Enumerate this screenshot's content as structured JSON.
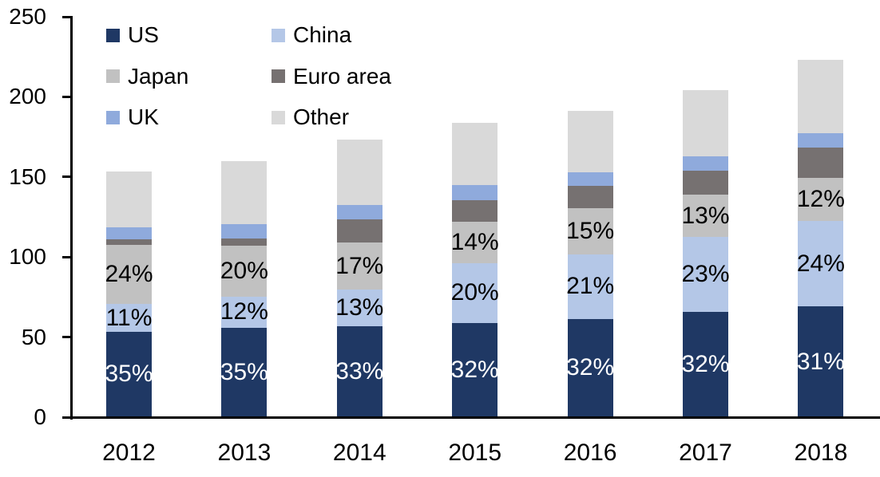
{
  "chart_data": {
    "type": "bar",
    "stacked": true,
    "title": "",
    "xlabel": "",
    "ylabel": "",
    "grid": false,
    "background_color": "#ffffff",
    "axis_color": "#000000",
    "categories": [
      "2012",
      "2013",
      "2014",
      "2015",
      "2016",
      "2017",
      "2018"
    ],
    "totals": [
      153.5,
      160,
      173.5,
      184,
      191.5,
      204,
      223
    ],
    "series": [
      {
        "name": "US",
        "color": "#1f3864",
        "label_text_color": "#ffffff",
        "values": [
          53.5,
          56,
          57,
          59,
          61.5,
          65.5,
          69
        ],
        "labels": [
          "35%",
          "35%",
          "33%",
          "32%",
          "32%",
          "32%",
          "31%"
        ]
      },
      {
        "name": "China",
        "color": "#b4c7e7",
        "label_text_color": "#000000",
        "values": [
          17,
          19,
          22.5,
          37,
          40,
          47,
          53.5
        ],
        "labels": [
          "11%",
          "12%",
          "13%",
          "20%",
          "21%",
          "23%",
          "24%"
        ]
      },
      {
        "name": "Japan",
        "color": "#c1c1c1",
        "label_text_color": "#000000",
        "values": [
          37,
          32,
          29.5,
          26,
          29,
          26.5,
          27
        ],
        "labels": [
          "24%",
          "20%",
          "17%",
          "14%",
          "15%",
          "13%",
          "12%"
        ]
      },
      {
        "name": "Euro area",
        "color": "#767171",
        "label_text_color": "#000000",
        "values": [
          3.5,
          4.5,
          14.5,
          13.5,
          14,
          15,
          19
        ],
        "labels": [
          "",
          "",
          "",
          "",
          "",
          "",
          ""
        ]
      },
      {
        "name": "UK",
        "color": "#8faadc",
        "label_text_color": "#000000",
        "values": [
          7.5,
          9,
          9,
          9.5,
          8.5,
          9,
          9
        ],
        "labels": [
          "",
          "",
          "",
          "",
          "",
          "",
          ""
        ]
      },
      {
        "name": "Other",
        "color": "#d9d9d9",
        "label_text_color": "#000000",
        "values": [
          35,
          39.5,
          41,
          39,
          38.5,
          41,
          45.5
        ],
        "labels": [
          "",
          "",
          "",
          "",
          "",
          "",
          ""
        ]
      }
    ],
    "y_axis": {
      "min": 0,
      "max": 250,
      "step": 50,
      "tick_labels": [
        "0",
        "50",
        "100",
        "150",
        "200",
        "250"
      ]
    },
    "legend": {
      "position": "top-left",
      "columns": 2,
      "items": [
        {
          "label": "US",
          "color": "#1f3864"
        },
        {
          "label": "China",
          "color": "#b4c7e7"
        },
        {
          "label": "Japan",
          "color": "#c1c1c1"
        },
        {
          "label": "Euro area",
          "color": "#767171"
        },
        {
          "label": "UK",
          "color": "#8faadc"
        },
        {
          "label": "Other",
          "color": "#d9d9d9"
        }
      ]
    }
  }
}
